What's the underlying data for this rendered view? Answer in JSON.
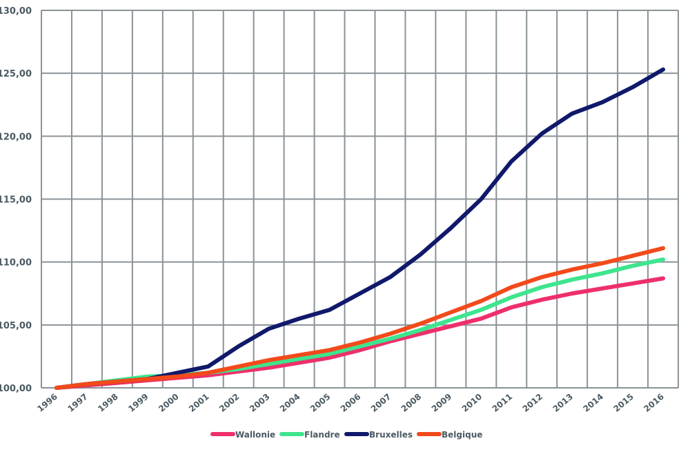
{
  "chart_data": {
    "type": "line",
    "x": [
      "1996",
      "1997",
      "1998",
      "1999",
      "2000",
      "2001",
      "2002",
      "2003",
      "2004",
      "2005",
      "2006",
      "2007",
      "2008",
      "2009",
      "2010",
      "2011",
      "2012",
      "2013",
      "2014",
      "2015",
      "2016"
    ],
    "ylim": [
      100,
      130
    ],
    "yticks": [
      100,
      105,
      110,
      115,
      120,
      125,
      130
    ],
    "ytick_labels": [
      "100,00",
      "105,00",
      "110,00",
      "115,00",
      "120,00",
      "125,00",
      "130,00"
    ],
    "grid": true,
    "legend_position": "bottom",
    "series": [
      {
        "name": "Wallonie",
        "color": "#ee2f6c",
        "values": [
          100.0,
          100.2,
          100.4,
          100.6,
          100.8,
          101.0,
          101.3,
          101.6,
          102.0,
          102.4,
          103.0,
          103.7,
          104.3,
          104.9,
          105.5,
          106.4,
          107.0,
          107.5,
          107.9,
          108.3,
          108.7
        ]
      },
      {
        "name": "Flandre",
        "color": "#3ee58e",
        "values": [
          100.0,
          100.3,
          100.6,
          100.9,
          101.0,
          101.2,
          101.5,
          101.9,
          102.3,
          102.7,
          103.3,
          103.9,
          104.6,
          105.4,
          106.2,
          107.2,
          108.0,
          108.6,
          109.1,
          109.7,
          110.2
        ]
      },
      {
        "name": "Bruxelles",
        "color": "#10196a",
        "values": [
          100.0,
          100.3,
          100.5,
          100.7,
          101.2,
          101.7,
          103.3,
          104.7,
          105.5,
          106.2,
          107.5,
          108.8,
          110.6,
          112.7,
          115.0,
          118.0,
          120.2,
          121.8,
          122.7,
          123.9,
          125.3
        ]
      },
      {
        "name": "Belgique",
        "color": "#f24a1b",
        "values": [
          100.0,
          100.3,
          100.5,
          100.7,
          100.9,
          101.2,
          101.7,
          102.2,
          102.6,
          103.0,
          103.6,
          104.3,
          105.1,
          106.0,
          106.9,
          108.0,
          108.8,
          109.4,
          109.9,
          110.5,
          111.1
        ]
      }
    ]
  }
}
